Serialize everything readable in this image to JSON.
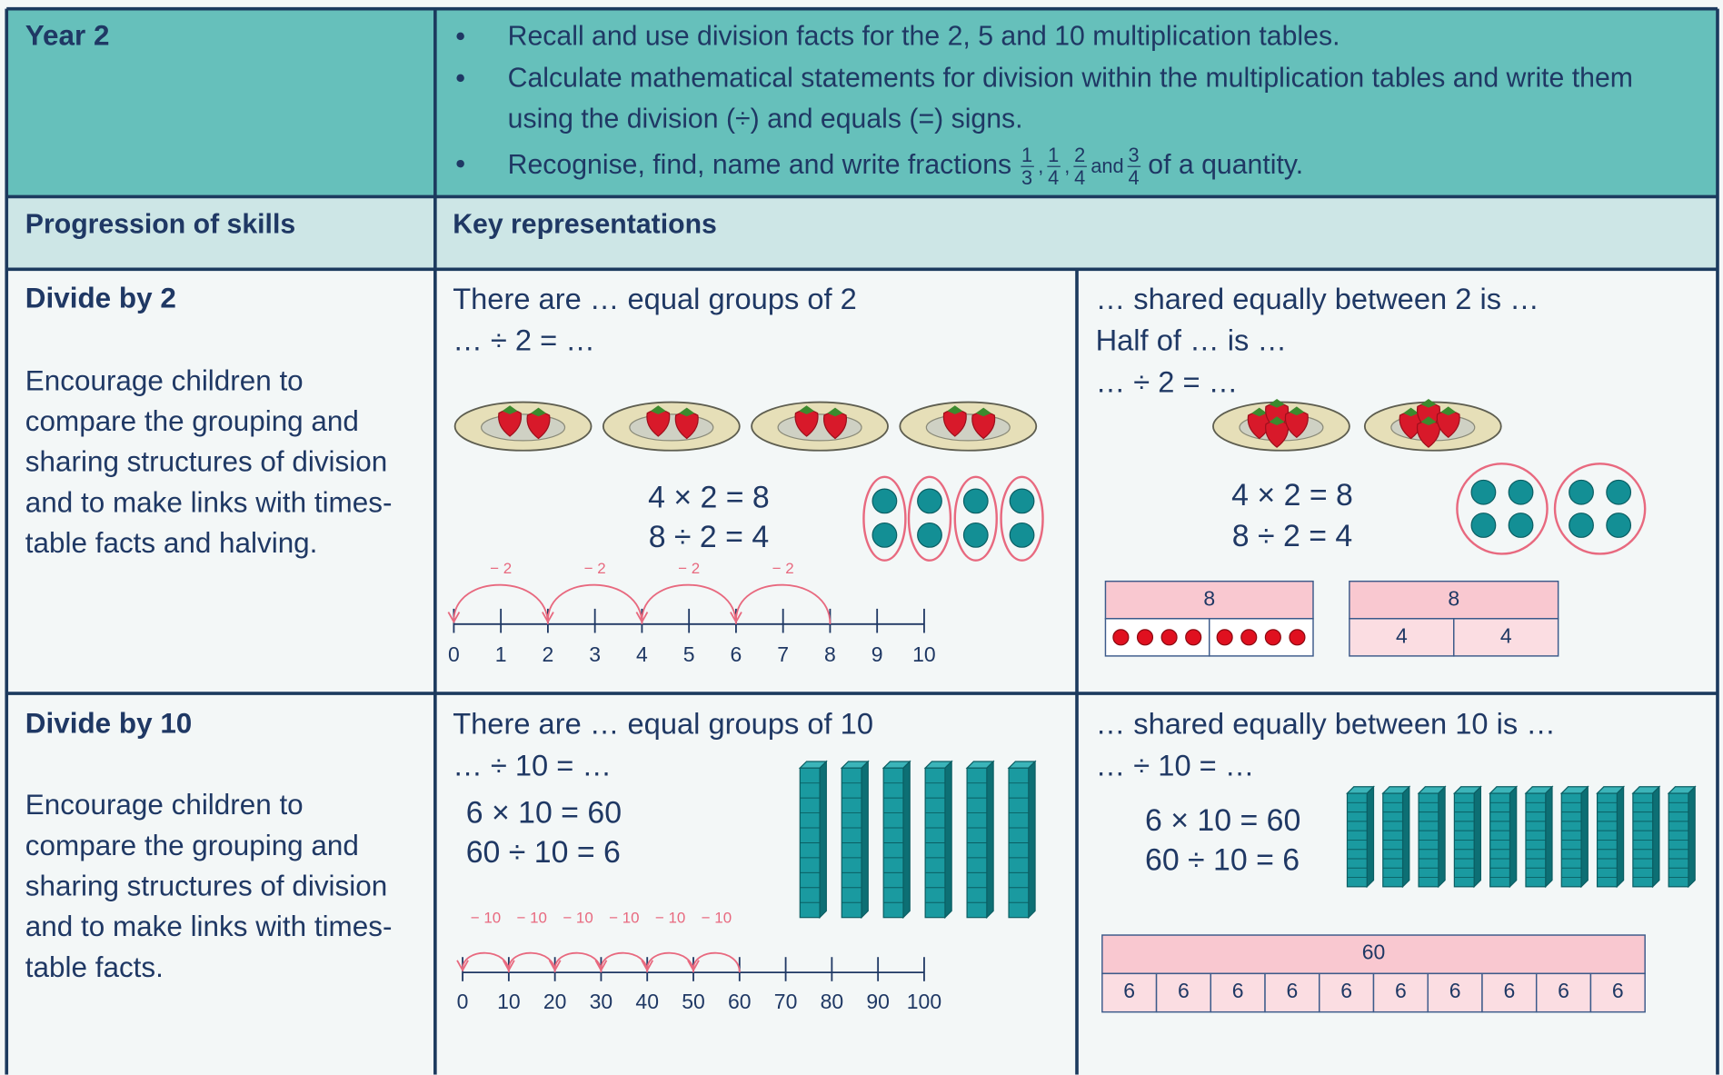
{
  "header": {
    "title": "Year 2",
    "objectives": [
      {
        "text": "Recall and use division facts for the 2, 5 and 10 multiplication tables."
      },
      {
        "text": "Calculate mathematical statements for division within the multiplication tables and write them using the division (÷) and equals (=) signs."
      },
      {
        "text": "Recognise, find, name and write fractions",
        "fractions": [
          {
            "numerator": 1,
            "denominator": 3
          },
          {
            "numerator": 1,
            "denominator": 4
          },
          {
            "numerator": 2,
            "denominator": 4
          },
          {
            "numerator": 3,
            "denominator": 4
          }
        ],
        "separators": [
          ",",
          ",",
          "and"
        ],
        "suffix": "of a quantity."
      }
    ]
  },
  "columns": {
    "skills": "Progression of skills",
    "representations": "Key representations"
  },
  "rows": [
    {
      "title": "Divide by 2",
      "description": "Encourage children to compare the grouping and sharing structures of division and to make links with times-table facts and halving.",
      "grouping": {
        "prompts": [
          "There are … equal groups of 2",
          "… ÷ 2 = …"
        ],
        "equations": [
          "4 × 2 = 8",
          "8 ÷ 2 = 4"
        ],
        "number_line": {
          "ticks": [
            0,
            1,
            2,
            3,
            4,
            5,
            6,
            7,
            8,
            9,
            10
          ],
          "jump_labels": [
            "− 2",
            "− 2",
            "− 2",
            "− 2"
          ]
        }
      },
      "sharing": {
        "prompts": [
          "… shared equally between 2 is …",
          "Half of … is …",
          "… ÷ 2 = …"
        ],
        "equations": [
          "4 × 2 = 8",
          "8 ÷ 2 = 4"
        ],
        "bar_models": [
          {
            "whole": 8
          },
          {
            "whole": 8,
            "parts": [
              4,
              4
            ]
          }
        ]
      }
    },
    {
      "title": "Divide by 10",
      "description": "Encourage children to compare the grouping and sharing structures of division and to make links with times-table facts.",
      "grouping": {
        "prompts": [
          "There are … equal groups of 10",
          "… ÷ 10 = …"
        ],
        "equations": [
          "6 × 10 = 60",
          "60 ÷ 10 = 6"
        ],
        "number_line": {
          "ticks": [
            0,
            10,
            20,
            30,
            40,
            50,
            60,
            70,
            80,
            90,
            100
          ],
          "jump_labels": [
            "− 10",
            "− 10",
            "− 10",
            "− 10",
            "− 10",
            "− 10"
          ]
        }
      },
      "sharing": {
        "prompts": [
          "… shared equally between 10 is …",
          "… ÷ 10 = …"
        ],
        "equations": [
          "6 × 10 = 60",
          "60 ÷ 10 = 6"
        ],
        "bar_models": [
          {
            "whole": 60,
            "parts": [
              6,
              6,
              6,
              6,
              6,
              6,
              6,
              6,
              6,
              6
            ]
          }
        ]
      }
    }
  ]
}
